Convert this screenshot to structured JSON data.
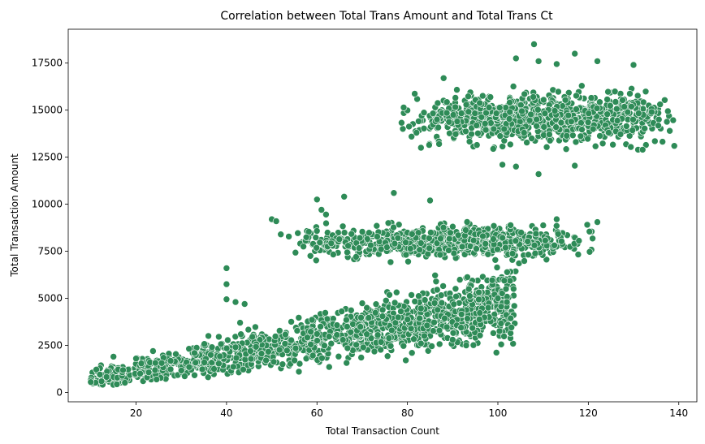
{
  "chart_data": {
    "type": "scatter",
    "title": "Correlation between Total Trans Amount and Total Trans Ct",
    "xlabel": "Total Transaction Count",
    "ylabel": "Total Transaction Amount",
    "xlim": [
      5,
      144
    ],
    "ylim": [
      -500,
      19300
    ],
    "xticks": [
      20,
      40,
      60,
      80,
      100,
      120,
      140
    ],
    "yticks": [
      0,
      2500,
      5000,
      7500,
      10000,
      12500,
      15000,
      17500
    ],
    "grid": false,
    "legend": "none",
    "point_color": "#2e8b57",
    "clusters": [
      {
        "x_range": [
          10,
          104
        ],
        "y_at_x_start": 700,
        "y_at_x_end": 4700,
        "y_spread": 650,
        "count": 1400
      },
      {
        "x_range": [
          50,
          122
        ],
        "y_center": 8000,
        "y_spread": 700,
        "count": 700
      },
      {
        "x_range": [
          78,
          139
        ],
        "y_center": 14600,
        "y_spread": 1100,
        "count": 900
      }
    ],
    "points": [
      [
        108,
        18500
      ],
      [
        117,
        18000
      ],
      [
        109,
        17600
      ],
      [
        104,
        17750
      ],
      [
        130,
        17400
      ],
      [
        122,
        17600
      ],
      [
        113,
        17450
      ],
      [
        88,
        16700
      ],
      [
        82,
        13800
      ],
      [
        83,
        13000
      ],
      [
        87,
        13200
      ],
      [
        91,
        14400
      ],
      [
        109,
        11600
      ],
      [
        101,
        12100
      ],
      [
        138,
        13900
      ],
      [
        139,
        13100
      ],
      [
        134,
        14900
      ],
      [
        131,
        12900
      ],
      [
        132,
        12900
      ],
      [
        117,
        12050
      ],
      [
        104,
        12000
      ],
      [
        122,
        9050
      ],
      [
        113,
        9200
      ],
      [
        99,
        8150
      ],
      [
        85,
        10200
      ],
      [
        77,
        10600
      ],
      [
        66,
        10400
      ],
      [
        60,
        10250
      ],
      [
        61,
        9700
      ],
      [
        62,
        9450
      ],
      [
        50,
        9200
      ],
      [
        51,
        9100
      ],
      [
        52,
        8400
      ],
      [
        40,
        6600
      ],
      [
        40,
        5750
      ],
      [
        40,
        4950
      ],
      [
        42,
        4800
      ],
      [
        44,
        4700
      ],
      [
        43,
        3700
      ],
      [
        36,
        3000
      ],
      [
        42,
        2400
      ],
      [
        56,
        1100
      ],
      [
        81,
        2100
      ],
      [
        83,
        2600
      ],
      [
        90,
        2800
      ],
      [
        93,
        2500
      ],
      [
        99,
        3150
      ],
      [
        103,
        3450
      ],
      [
        102,
        4800
      ],
      [
        100,
        5000
      ],
      [
        15,
        1900
      ],
      [
        12,
        950
      ],
      [
        10,
        650
      ],
      [
        10,
        550
      ],
      [
        20,
        1800
      ]
    ]
  }
}
